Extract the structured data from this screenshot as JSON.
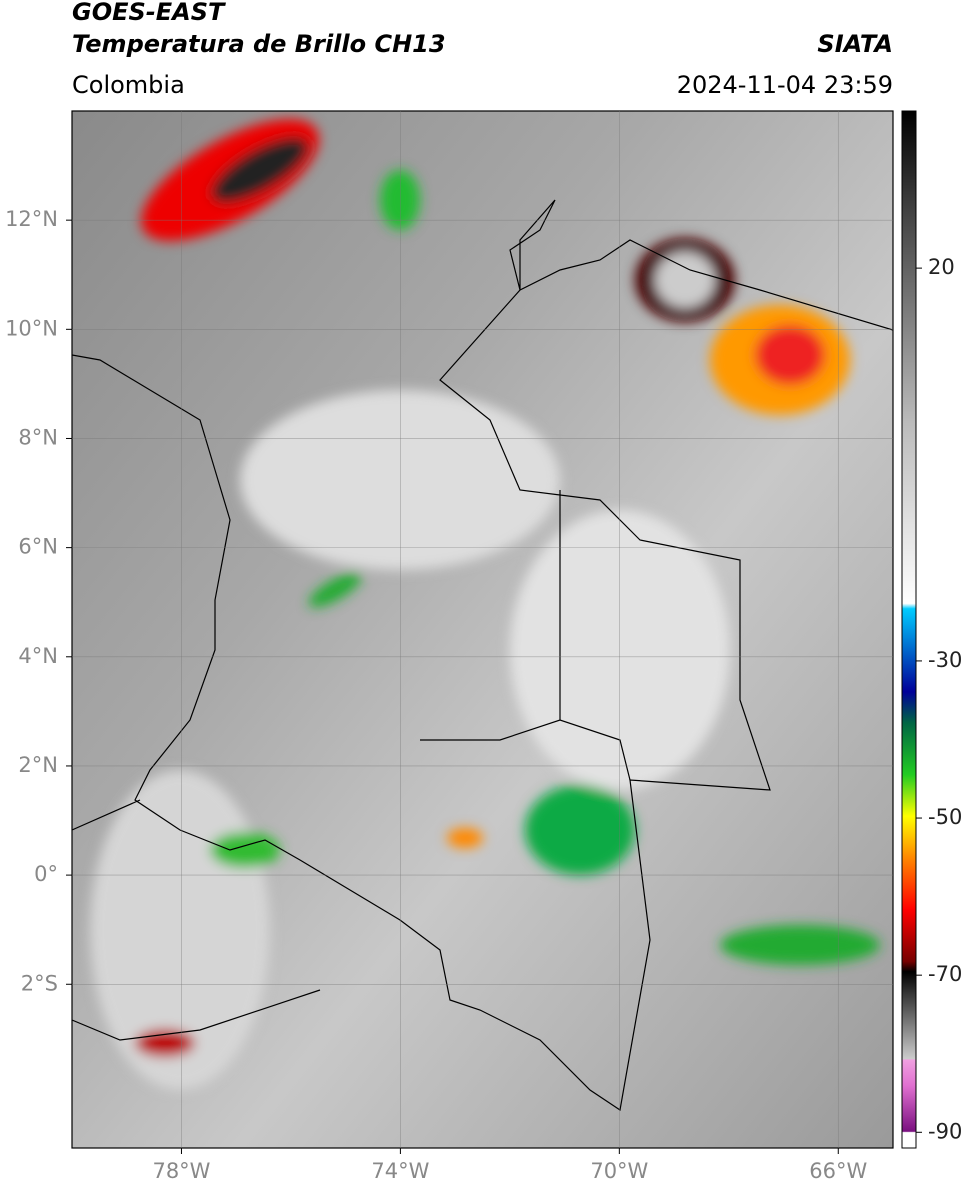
{
  "header": {
    "line1": "GOES-EAST",
    "line2": "Temperatura de Brillo CH13",
    "source": "SIATA",
    "region": "Colombia",
    "datetime": "2024-11-04 23:59"
  },
  "map": {
    "xlim": [
      -80,
      -65
    ],
    "ylim": [
      -5,
      14
    ],
    "xticks": [
      {
        "value": -78,
        "label": "78°W"
      },
      {
        "value": -74,
        "label": "74°W"
      },
      {
        "value": -70,
        "label": "70°W"
      },
      {
        "value": -66,
        "label": "66°W"
      }
    ],
    "yticks": [
      {
        "value": 12,
        "label": "12°N"
      },
      {
        "value": 10,
        "label": "10°N"
      },
      {
        "value": 8,
        "label": "8°N"
      },
      {
        "value": 6,
        "label": "6°N"
      },
      {
        "value": 4,
        "label": "4°N"
      },
      {
        "value": 2,
        "label": "2°N"
      },
      {
        "value": 0,
        "label": "0°"
      },
      {
        "value": -2,
        "label": "2°S"
      }
    ],
    "grid": true
  },
  "colorbar": {
    "lim": [
      -92,
      40
    ],
    "ticks": [
      20,
      -30,
      -50,
      -70,
      -90
    ]
  }
}
